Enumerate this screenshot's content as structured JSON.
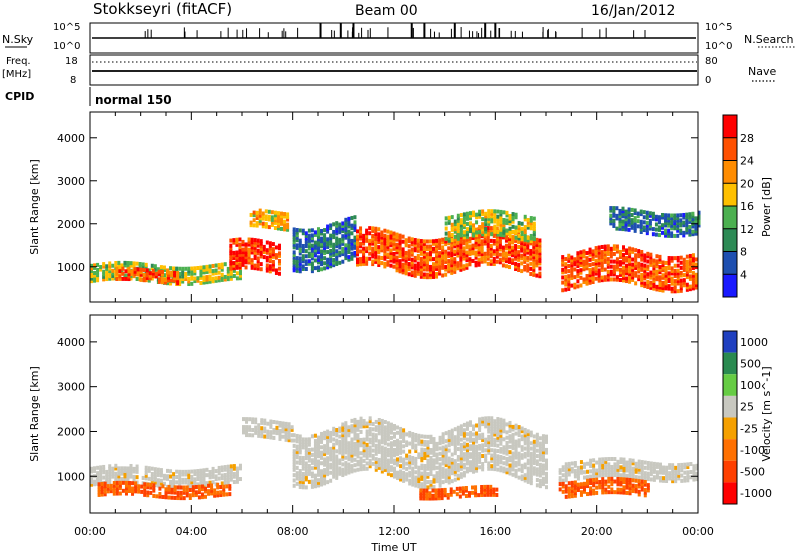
{
  "header": {
    "station": "Stokkseyri (fitACF)",
    "beam": "Beam 00",
    "date": "16/Jan/2012"
  },
  "strip_labels": {
    "nsky": "N.Sky",
    "nsky_top": "10^5",
    "nsky_bottom": "10^0",
    "nsearch": "N.Search",
    "nsearch_top": "10^5",
    "nsearch_bottom": "10^0",
    "freq": "Freq.",
    "freq_unit": "[MHz]",
    "freq_top": "18",
    "freq_bottom": "8",
    "nave": "Nave",
    "nave_top": "80",
    "nave_bottom": "0",
    "cpid": "CPID",
    "mode": "normal 150"
  },
  "colors": {
    "power": [
      "#1a1aff",
      "#1e4fb0",
      "#2d8a55",
      "#4cb050",
      "#ffc000",
      "#ff8c00",
      "#ff5000",
      "#ff0000"
    ],
    "velocity": [
      "#2040c0",
      "#2a8a50",
      "#66cc44",
      "#c8c8c0",
      "#f5a000",
      "#ff7000",
      "#ff4000",
      "#ff0000"
    ],
    "ground_scatter": "#c8c8c0"
  },
  "chart_data": [
    {
      "type": "heatmap",
      "title": "Power",
      "xlabel": "Time UT",
      "ylabel": "Slant Range [km]",
      "x_ticks": [
        "00:00",
        "04:00",
        "08:00",
        "12:00",
        "16:00",
        "20:00",
        "00:00"
      ],
      "xlim_hours": [
        0,
        24
      ],
      "y_ticks": [
        1000,
        2000,
        3000,
        4000
      ],
      "ylim": [
        180,
        4600
      ],
      "colorbar_label": "Power [dB]",
      "colorbar_ticks": [
        4,
        8,
        12,
        16,
        20,
        24,
        28
      ],
      "colorbar_range": [
        0,
        32
      ],
      "regions": [
        {
          "t0": 0.0,
          "t1": 6.0,
          "r_center": 800,
          "r_half": 200,
          "value": 16
        },
        {
          "t0": 1.0,
          "t1": 3.5,
          "r_center": 750,
          "r_half": 150,
          "value": 26
        },
        {
          "t0": 5.5,
          "t1": 7.5,
          "r_center": 1150,
          "r_half": 350,
          "value": 28
        },
        {
          "t0": 6.3,
          "t1": 7.8,
          "r_center": 2050,
          "r_half": 200,
          "value": 20
        },
        {
          "t0": 8.0,
          "t1": 10.5,
          "r_center": 1500,
          "r_half": 500,
          "value": 8
        },
        {
          "t0": 10.5,
          "t1": 17.8,
          "r_center": 1300,
          "r_half": 450,
          "value": 26
        },
        {
          "t0": 14.0,
          "t1": 17.5,
          "r_center": 1900,
          "r_half": 300,
          "value": 16
        },
        {
          "t0": 18.6,
          "t1": 24.0,
          "r_center": 900,
          "r_half": 400,
          "value": 26
        },
        {
          "t0": 20.5,
          "t1": 24.0,
          "r_center": 2000,
          "r_half": 250,
          "value": 8
        }
      ]
    },
    {
      "type": "heatmap",
      "title": "Velocity",
      "xlabel": "Time UT",
      "ylabel": "Slant Range [km]",
      "x_ticks": [
        "00:00",
        "04:00",
        "08:00",
        "12:00",
        "16:00",
        "20:00",
        "00:00"
      ],
      "xlim_hours": [
        0,
        24
      ],
      "y_ticks": [
        1000,
        2000,
        3000,
        4000
      ],
      "ylim": [
        180,
        4600
      ],
      "colorbar_label": "Velocity [m s^-1]",
      "colorbar_ticks": [
        1000,
        500,
        100,
        25,
        -25,
        -100,
        -500,
        -1000
      ],
      "regions": [
        {
          "t0": 0.0,
          "t1": 6.0,
          "r_center": 950,
          "r_half": 200,
          "value": 0
        },
        {
          "t0": 0.3,
          "t1": 5.5,
          "r_center": 650,
          "r_half": 150,
          "value": -300
        },
        {
          "t0": 6.0,
          "t1": 8.0,
          "r_center": 2000,
          "r_half": 200,
          "value": 0
        },
        {
          "t0": 8.0,
          "t1": 18.0,
          "r_center": 1500,
          "r_half": 600,
          "value": 0
        },
        {
          "t0": 13.0,
          "t1": 16.0,
          "r_center": 600,
          "r_half": 120,
          "value": -300
        },
        {
          "t0": 18.5,
          "t1": 24.0,
          "r_center": 1100,
          "r_half": 200,
          "value": 0
        },
        {
          "t0": 18.5,
          "t1": 22.0,
          "r_center": 700,
          "r_half": 180,
          "value": -300
        }
      ]
    }
  ]
}
